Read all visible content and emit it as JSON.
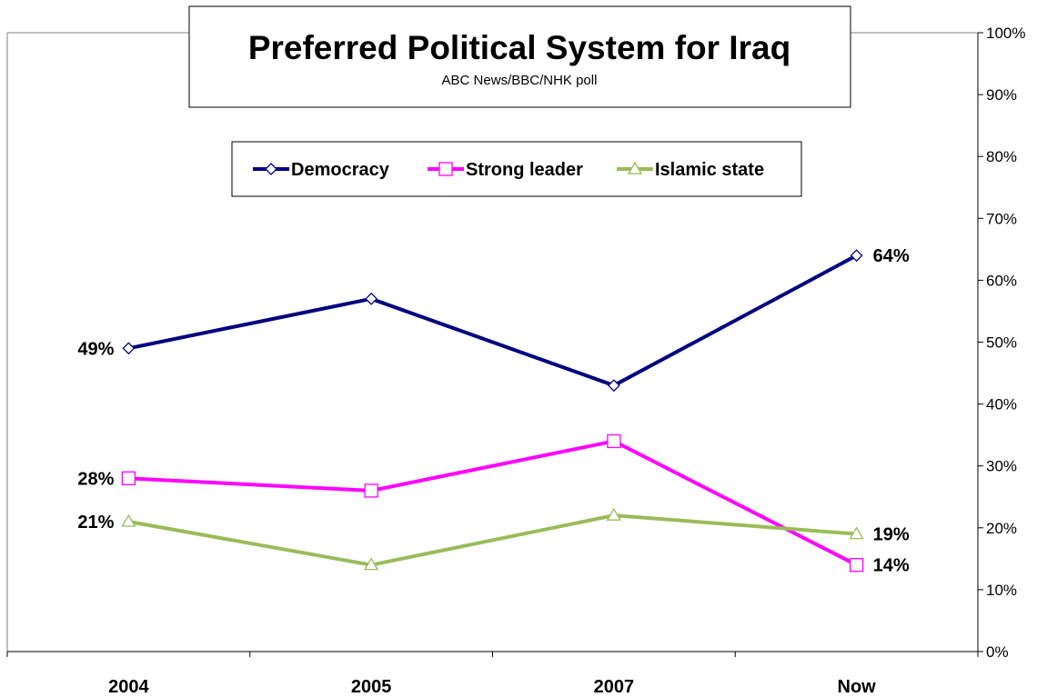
{
  "chart_data": {
    "type": "line",
    "title": "Preferred Political System for Iraq",
    "subtitle": "ABC News/BBC/NHK poll",
    "categories": [
      "2004",
      "2005",
      "2007",
      "Now"
    ],
    "ylim": [
      0,
      100
    ],
    "yticks": [
      0,
      10,
      20,
      30,
      40,
      50,
      60,
      70,
      80,
      90,
      100
    ],
    "ytick_labels": [
      "0%",
      "10%",
      "20%",
      "30%",
      "40%",
      "50%",
      "60%",
      "70%",
      "80%",
      "90%",
      "100%"
    ],
    "y_axis_side": "right",
    "grid": false,
    "legend_position": "top-center",
    "series": [
      {
        "name": "Democracy",
        "color": "#000080",
        "marker": "diamond",
        "values": [
          49,
          57,
          43,
          64
        ],
        "labels": [
          "49%",
          null,
          null,
          "64%"
        ]
      },
      {
        "name": "Strong leader",
        "color": "#FF00FF",
        "marker": "square",
        "values": [
          28,
          26,
          34,
          14
        ],
        "labels": [
          "28%",
          null,
          null,
          "14%"
        ]
      },
      {
        "name": "Islamic state",
        "color": "#9BBB59",
        "marker": "triangle",
        "values": [
          21,
          14,
          22,
          19
        ],
        "labels": [
          "21%",
          null,
          null,
          "19%"
        ]
      }
    ]
  }
}
